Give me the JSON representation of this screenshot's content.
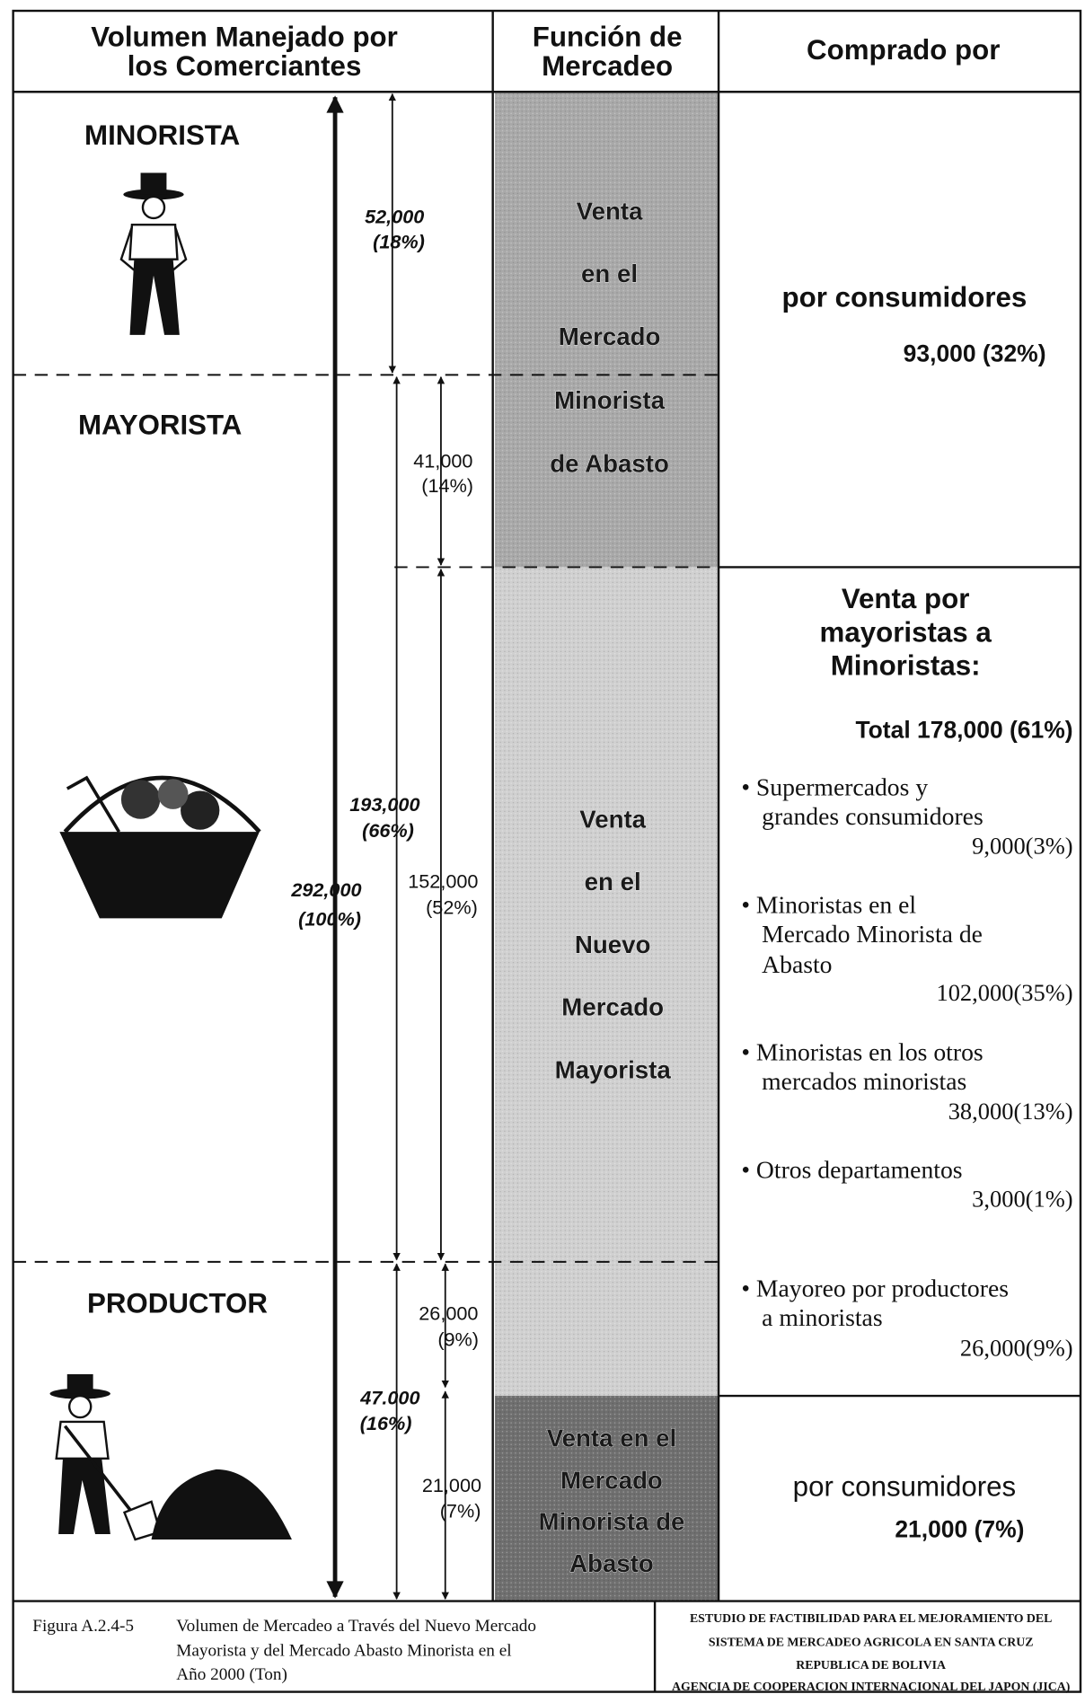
{
  "header": {
    "volume": [
      "Volumen Manejado por",
      "los Comerciantes"
    ],
    "function": [
      "Función de",
      "Mercadeo"
    ],
    "buyer": "Comprado por"
  },
  "levels": [
    "MINORISTA",
    "MAYORISTA",
    "PRODUCTOR"
  ],
  "volumes": [
    {
      "amount": "292,000",
      "share": "(100%)"
    },
    {
      "amount": "52,000",
      "share": "(18%)"
    },
    {
      "amount": "193,000",
      "share": "(66%)"
    },
    {
      "amount": "41,000",
      "share": "(14%)"
    },
    {
      "amount": "152,000",
      "share": "(52%)"
    },
    {
      "amount": "47.000",
      "share": "(16%)"
    },
    {
      "amount": "26,000",
      "share": "(9%)"
    },
    {
      "amount": "21,000",
      "share": "(7%)"
    }
  ],
  "functions": [
    [
      "Venta",
      "en el",
      "Mercado",
      "Minorista",
      "de Abasto"
    ],
    [
      "Venta",
      "en el",
      "Nuevo",
      "Mercado",
      "Mayorista"
    ],
    [
      "Venta en el",
      "Mercado",
      "Minorista de",
      "Abasto"
    ]
  ],
  "buyers": {
    "retail_consumers": {
      "label": "por consumidores",
      "amount": "93,000 (32%)"
    },
    "wholesale": {
      "heading": [
        "Venta por",
        "mayoristas a",
        "Minoristas:"
      ],
      "total": "Total 178,000 (61%)",
      "items": [
        {
          "lines": [
            "• Supermercados y",
            "grandes consumidores"
          ],
          "amount": "9,000(3%)"
        },
        {
          "lines": [
            "• Minoristas en el",
            "Mercado Minorista de",
            "Abasto"
          ],
          "amount": "102,000(35%)"
        },
        {
          "lines": [
            "• Minoristas en los otros",
            "mercados minoristas"
          ],
          "amount": "38,000(13%)"
        },
        {
          "lines": [
            "• Otros departamentos"
          ],
          "amount": "3,000(1%)"
        }
      ]
    },
    "producer": {
      "lines": [
        "• Mayoreo por productores",
        "a minoristas"
      ],
      "amount": "26,000(9%)"
    },
    "abasto_consumers": {
      "label": "por consumidores",
      "amount": "21,000 (7%)"
    }
  },
  "footer": {
    "figure": "Figura A.2.4-5",
    "caption": [
      "Volumen de Mercadeo a Través del Nuevo Mercado",
      "Mayorista y del Mercado Abasto Minorista en el",
      "Año 2000 (Ton)"
    ],
    "agency": [
      "ESTUDIO DE FACTIBILIDAD PARA EL MEJORAMIENTO DEL",
      "SISTEMA DE MERCADEO AGRICOLA EN SANTA CRUZ",
      "REPUBLICA DE BOLIVIA",
      "AGENCIA DE COOPERACION INTERNACIONAL DEL JAPON (JICA)"
    ]
  }
}
